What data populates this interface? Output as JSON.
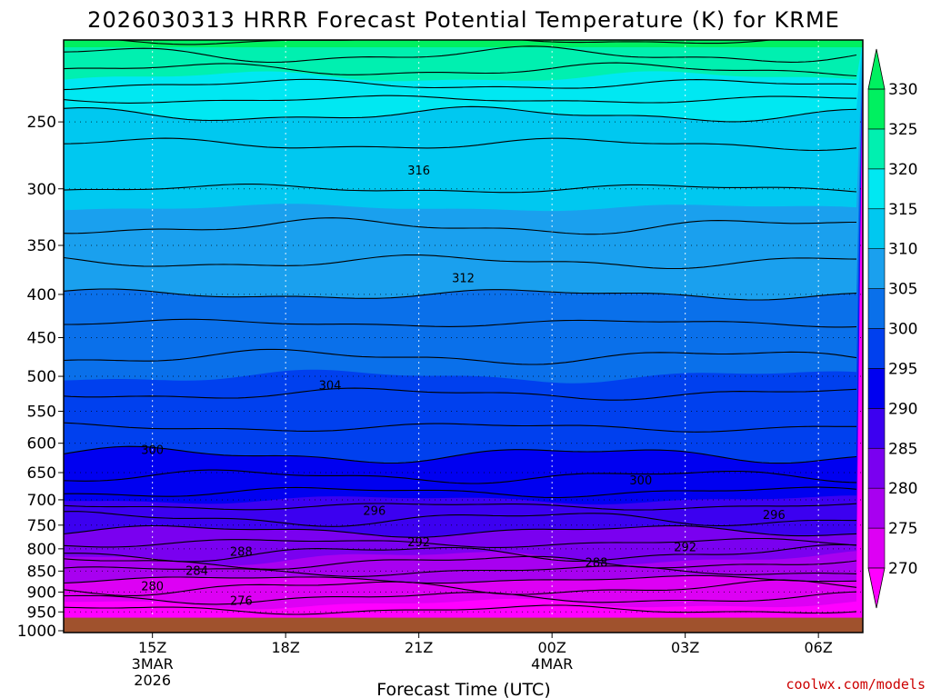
{
  "chart_data": {
    "type": "heatmap",
    "title": "2026030313 HRRR Forecast Potential Temperature (K) for KRME",
    "xlabel": "Forecast Time (UTC)",
    "ylabel": "",
    "credit": "coolwx.com/models",
    "x_ticks": [
      {
        "hour": 15,
        "lines": [
          "15Z",
          "3MAR",
          "2026"
        ]
      },
      {
        "hour": 18,
        "lines": [
          "18Z"
        ]
      },
      {
        "hour": 21,
        "lines": [
          "21Z"
        ]
      },
      {
        "hour": 24,
        "lines": [
          "00Z",
          "4MAR"
        ]
      },
      {
        "hour": 27,
        "lines": [
          "03Z"
        ]
      },
      {
        "hour": 30,
        "lines": [
          "06Z"
        ]
      }
    ],
    "xlim": [
      13,
      31
    ],
    "y_ticks": [
      250,
      300,
      350,
      400,
      450,
      500,
      550,
      600,
      650,
      700,
      750,
      800,
      850,
      900,
      950,
      1000
    ],
    "ylim": [
      1005,
      200
    ],
    "y_scale": "log-pressure",
    "grid": true,
    "surface_pressure": 965,
    "colorbar": {
      "levels": [
        270,
        275,
        280,
        285,
        290,
        295,
        300,
        305,
        310,
        315,
        320,
        325,
        330
      ],
      "labels": [
        "270",
        "275",
        "280",
        "285",
        "290",
        "295",
        "300",
        "305",
        "310",
        "315",
        "320",
        "325",
        "330"
      ],
      "colors": [
        "#ff00ff",
        "#dd00f4",
        "#a800f0",
        "#7a00f0",
        "#3c00f0",
        "#0000f0",
        "#0040ee",
        "#0a70ea",
        "#1aa0ee",
        "#00c8f0",
        "#00e8f2",
        "#00f0b0",
        "#00f060"
      ]
    },
    "contour_profile": {
      "pressure": [
        960,
        900,
        850,
        800,
        750,
        700,
        650,
        600,
        550,
        500,
        450,
        400,
        350,
        300,
        250,
        200
      ],
      "theta": [
        273,
        277,
        282,
        287,
        291,
        295,
        298.5,
        301,
        303,
        305,
        307,
        310,
        313,
        316,
        319,
        330
      ]
    },
    "contour_labels": [
      {
        "text": "316",
        "hour": 21.0,
        "p": 285
      },
      {
        "text": "312",
        "hour": 22.0,
        "p": 382
      },
      {
        "text": "304",
        "hour": 19.0,
        "p": 512
      },
      {
        "text": "300",
        "hour": 15.0,
        "p": 610
      },
      {
        "text": "300",
        "hour": 26.0,
        "p": 663
      },
      {
        "text": "296",
        "hour": 20.0,
        "p": 720
      },
      {
        "text": "296",
        "hour": 29.0,
        "p": 728
      },
      {
        "text": "292",
        "hour": 21.0,
        "p": 785
      },
      {
        "text": "292",
        "hour": 27.0,
        "p": 795
      },
      {
        "text": "288",
        "hour": 17.0,
        "p": 805
      },
      {
        "text": "288",
        "hour": 25.0,
        "p": 830
      },
      {
        "text": "284",
        "hour": 16.0,
        "p": 848
      },
      {
        "text": "280",
        "hour": 15.0,
        "p": 885
      },
      {
        "text": "276",
        "hour": 17.0,
        "p": 920
      }
    ]
  }
}
